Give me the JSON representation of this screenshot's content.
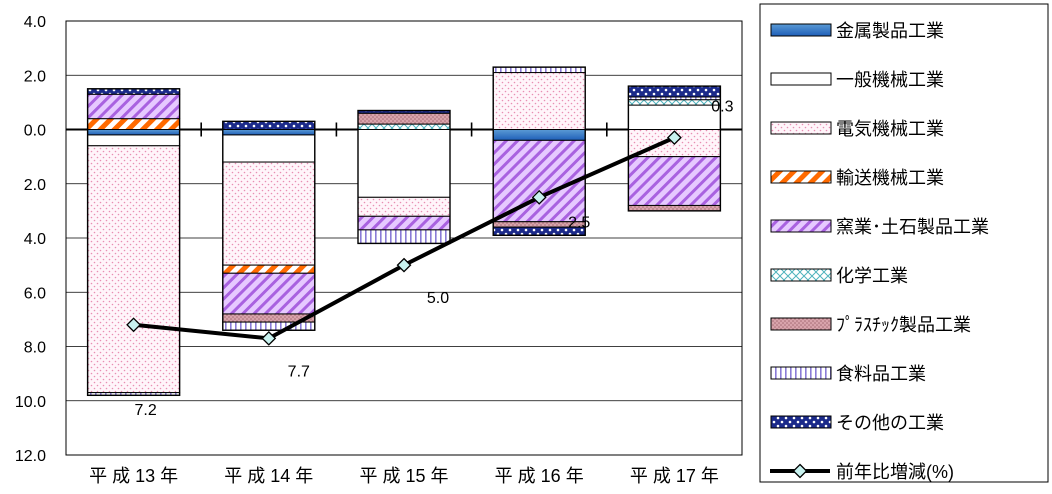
{
  "colors": {
    "background": "#ffffff",
    "border": "#000000",
    "gridline": "#000000",
    "metal": "#1f5fb8",
    "metal_light": "#5b9bd5",
    "general_machine": "#ffffff",
    "electrical": "#f4b6cf",
    "transport_stripe": "#ff6a00",
    "ceramics": "#b77be6",
    "chemical": "#79c4cc",
    "plastic": "#c99aa0",
    "food": "#9b8ed8",
    "other": "#1b2a8a",
    "line": "#000000",
    "marker": "#c8f2ef"
  },
  "chart_data": {
    "type": "bar",
    "subtype": "stacked contribution bars with line overlay",
    "categories": [
      "平 成 13 年",
      "平 成 14 年",
      "平 成 15 年",
      "平 成 16 年",
      "平 成 17 年"
    ],
    "y_axis": {
      "ylim": [
        -12.0,
        4.0
      ],
      "ticks": [
        4.0,
        2.0,
        0.0,
        -2.0,
        -4.0,
        -6.0,
        -8.0,
        -10.0,
        -12.0
      ],
      "tick_labels": [
        "4.0",
        "2.0",
        "0.0",
        "2.0",
        "4.0",
        "6.0",
        "8.0",
        "10.0",
        "12.0"
      ],
      "grid": true
    },
    "series": [
      {
        "name": "金属製品工業",
        "key": "metal",
        "values": [
          -0.2,
          -0.2,
          0.0,
          -0.4,
          0.0
        ]
      },
      {
        "name": "一般機械工業",
        "key": "general_machine",
        "values": [
          -0.4,
          -1.0,
          -2.5,
          0.0,
          0.9
        ]
      },
      {
        "name": "電気機械工業",
        "key": "electrical",
        "values": [
          -9.1,
          -3.8,
          -0.7,
          2.1,
          -1.0
        ]
      },
      {
        "name": "輸送機械工業",
        "key": "transport",
        "values": [
          0.4,
          -0.3,
          0.0,
          0.0,
          0.0
        ]
      },
      {
        "name": "窯業･土石製品工業",
        "key": "ceramics",
        "values": [
          0.9,
          -1.5,
          -0.5,
          -3.0,
          -1.8
        ]
      },
      {
        "name": "化学工業",
        "key": "chemical",
        "values": [
          0.0,
          0.0,
          0.2,
          0.0,
          0.2
        ]
      },
      {
        "name": "ﾌﾟﾗｽﾁｯｸ製品工業",
        "key": "plastic",
        "values": [
          0.0,
          -0.3,
          0.4,
          -0.2,
          -0.2
        ]
      },
      {
        "name": "食料品工業",
        "key": "food",
        "values": [
          -0.1,
          -0.3,
          -0.5,
          0.2,
          0.1
        ]
      },
      {
        "name": "その他の工業",
        "key": "other",
        "values": [
          0.2,
          0.3,
          0.1,
          -0.3,
          0.4
        ]
      }
    ],
    "line_series": {
      "name": "前年比増減(%)",
      "values": [
        -7.2,
        -7.7,
        -5.0,
        -2.5,
        -0.3
      ],
      "labels": [
        "7.2",
        "7.7",
        "5.0",
        "2.5",
        "0.3"
      ]
    },
    "legend": {
      "placement": "right",
      "items": [
        {
          "label": "金属製品工業",
          "key": "metal"
        },
        {
          "label": "一般機械工業",
          "key": "general_machine"
        },
        {
          "label": "電気機械工業",
          "key": "electrical"
        },
        {
          "label": "輸送機械工業",
          "key": "transport"
        },
        {
          "label": "窯業･土石製品工業",
          "key": "ceramics"
        },
        {
          "label": "化学工業",
          "key": "chemical"
        },
        {
          "label": "ﾌﾟﾗｽﾁｯｸ製品工業",
          "key": "plastic"
        },
        {
          "label": "食料品工業",
          "key": "food"
        },
        {
          "label": "その他の工業",
          "key": "other"
        },
        {
          "label": "前年比増減(%)",
          "key": "line"
        }
      ]
    }
  }
}
